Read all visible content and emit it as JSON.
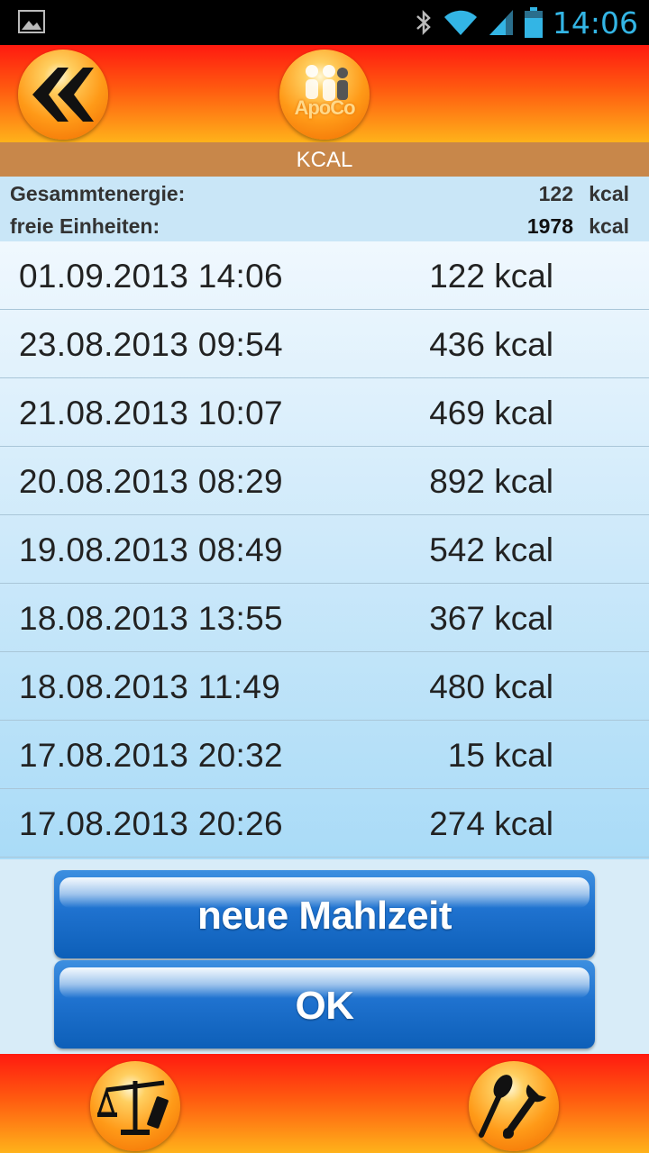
{
  "status_bar": {
    "time": "14:06",
    "icons": [
      "image-icon",
      "bluetooth-icon",
      "wifi-icon",
      "signal-icon",
      "battery-icon"
    ]
  },
  "header": {
    "logo_text": "ApoCo",
    "icons": [
      "double-chevron-left-icon",
      "family-logo-icon"
    ]
  },
  "section": {
    "title": "KCAL"
  },
  "summary": {
    "total_label": "Gesammtenergie:",
    "total_value": "122",
    "total_unit": "kcal",
    "free_label": "freie Einheiten:",
    "free_value": "1978",
    "free_unit": "kcal"
  },
  "entries": [
    {
      "date": "01.09.2013 14:06",
      "kcal": "122 kcal"
    },
    {
      "date": "23.08.2013 09:54",
      "kcal": "436 kcal"
    },
    {
      "date": "21.08.2013 10:07",
      "kcal": "469 kcal"
    },
    {
      "date": "20.08.2013 08:29",
      "kcal": "892 kcal"
    },
    {
      "date": "19.08.2013 08:49",
      "kcal": "542 kcal"
    },
    {
      "date": "18.08.2013 13:55",
      "kcal": "367 kcal"
    },
    {
      "date": "18.08.2013 11:49",
      "kcal": "480 kcal"
    },
    {
      "date": "17.08.2013 20:32",
      "kcal": "15 kcal"
    },
    {
      "date": "17.08.2013 20:26",
      "kcal": "274 kcal"
    }
  ],
  "buttons": {
    "new_meal": "neue Mahlzeit",
    "ok": "OK"
  },
  "footer": {
    "icons": [
      "scale-icon",
      "tools-icon"
    ]
  },
  "colors": {
    "status_clock": "#33b5e5",
    "header_top": "#ff1a10",
    "header_bottom": "#ffb21a",
    "section_bar": "#c8874a",
    "button_blue": "#1f72cf"
  }
}
